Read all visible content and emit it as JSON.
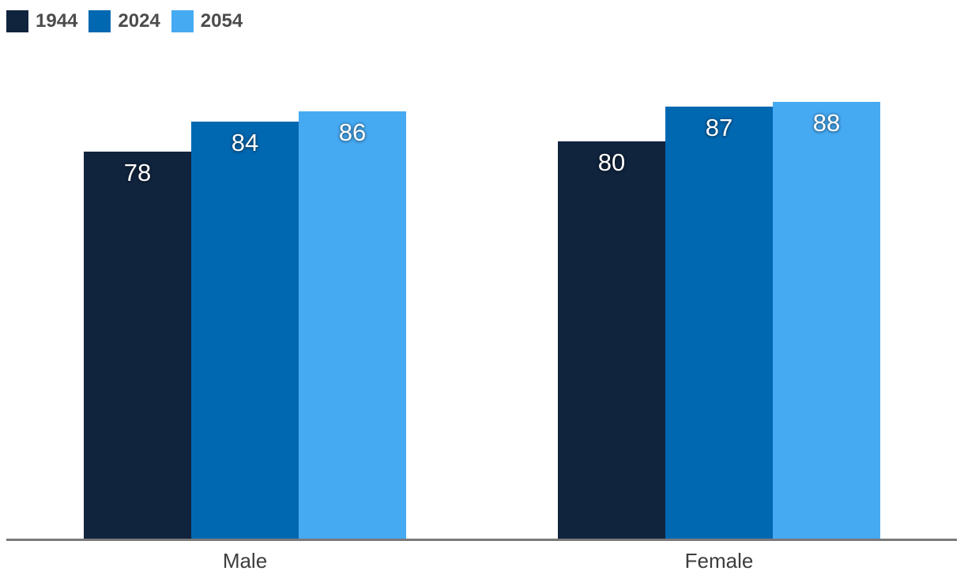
{
  "chart_data": {
    "type": "bar",
    "title": "",
    "xlabel": "",
    "ylabel": "",
    "categories": [
      "Male",
      "Female"
    ],
    "series": [
      {
        "name": "1944",
        "color": "#11243E",
        "values": [
          78,
          80
        ]
      },
      {
        "name": "2024",
        "color": "#0068B1",
        "values": [
          84,
          87
        ]
      },
      {
        "name": "2054",
        "color": "#46AAF3",
        "values": [
          86,
          88
        ]
      }
    ],
    "ylim": [
      0,
      94
    ],
    "grid": false,
    "legend_position": "top-left",
    "value_labels_shown": true,
    "axis_line_color": "#7A7A7A",
    "category_label_color": "#3D3D3D",
    "legend_text_color": "#4C4C4C",
    "value_label_color": "#FFFFFF",
    "background_color": "#FFFFFF"
  }
}
